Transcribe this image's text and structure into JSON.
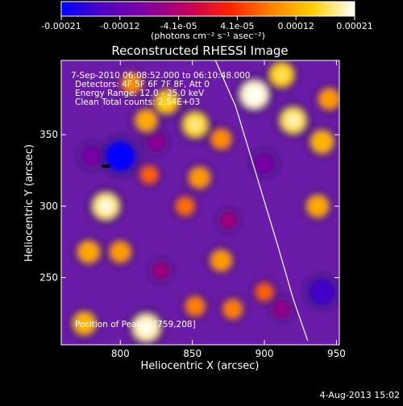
{
  "colorbar": {
    "ticks": [
      "-0.00021",
      "-0.00012",
      "-4.1e-05",
      "4.1e-05",
      "0.00012",
      "0.00021"
    ],
    "unit_label": "(photons cm⁻² s⁻¹ asec⁻²)",
    "colors": [
      "#0000ff",
      "#5000c0",
      "#8000a0",
      "#c00060",
      "#ff2000",
      "#ff8000",
      "#ffd000",
      "#ffffff"
    ]
  },
  "annotations": {
    "time_range": "7-Sep-2010 06:08:52.000 to 06:10:48.000",
    "detectors": "Detectors: 4F 5F 6F 7F 8F, Att 0",
    "energy": "Energy Range: 12.0 - 25.0 keV",
    "clean": "Clean     Total counts: 2.54E+03",
    "peak": "Position of Peak = [759,208]"
  },
  "timestamp": "4-Aug-2013 15:02",
  "chart_data": {
    "type": "heatmap",
    "title": "Reconstructed RHESSI Image",
    "xlabel": "Heliocentric X (arcsec)",
    "ylabel": "Heliocentric Y (arcsec)",
    "xlim": [
      759,
      952
    ],
    "ylim": [
      203,
      402
    ],
    "xticks": [
      800,
      850,
      900,
      950
    ],
    "yticks": [
      250,
      300,
      350
    ],
    "value_range": [
      -0.00021,
      0.00021
    ],
    "peak_position": [
      759,
      208
    ],
    "limb_curve": {
      "x": [
        866,
        880,
        895,
        910,
        920,
        930
      ],
      "y": [
        402,
        370,
        320,
        270,
        235,
        206
      ]
    },
    "features": [
      {
        "x": 790,
        "y": 300,
        "value": 0.00018
      },
      {
        "x": 818,
        "y": 360,
        "value": 0.00012
      },
      {
        "x": 832,
        "y": 373,
        "value": 0.00014
      },
      {
        "x": 808,
        "y": 386,
        "value": 0.0001
      },
      {
        "x": 852,
        "y": 357,
        "value": 0.00016
      },
      {
        "x": 870,
        "y": 347,
        "value": 0.0001
      },
      {
        "x": 893,
        "y": 378,
        "value": 0.0002
      },
      {
        "x": 912,
        "y": 392,
        "value": 0.00015
      },
      {
        "x": 920,
        "y": 360,
        "value": 0.00017
      },
      {
        "x": 940,
        "y": 345,
        "value": 0.00013
      },
      {
        "x": 937,
        "y": 300,
        "value": 0.00012
      },
      {
        "x": 945,
        "y": 375,
        "value": 0.00011
      },
      {
        "x": 855,
        "y": 320,
        "value": 0.00011
      },
      {
        "x": 820,
        "y": 322,
        "value": 7e-05
      },
      {
        "x": 800,
        "y": 268,
        "value": 0.00011
      },
      {
        "x": 778,
        "y": 268,
        "value": 0.00012
      },
      {
        "x": 818,
        "y": 215,
        "value": 0.00019
      },
      {
        "x": 775,
        "y": 218,
        "value": 0.00013
      },
      {
        "x": 870,
        "y": 262,
        "value": 0.00011
      },
      {
        "x": 878,
        "y": 228,
        "value": 9e-05
      },
      {
        "x": 852,
        "y": 230,
        "value": 9e-05
      },
      {
        "x": 845,
        "y": 300,
        "value": 8e-05
      },
      {
        "x": 800,
        "y": 335,
        "value": -0.00021
      },
      {
        "x": 825,
        "y": 345,
        "value": -8e-05
      },
      {
        "x": 780,
        "y": 335,
        "value": -0.0001
      },
      {
        "x": 940,
        "y": 240,
        "value": -0.00016
      },
      {
        "x": 912,
        "y": 228,
        "value": -7e-05
      },
      {
        "x": 900,
        "y": 330,
        "value": -0.0001
      },
      {
        "x": 875,
        "y": 290,
        "value": -6e-05
      },
      {
        "x": 828,
        "y": 255,
        "value": -6e-05
      },
      {
        "x": 900,
        "y": 240,
        "value": 7e-05
      }
    ],
    "grid": false
  }
}
